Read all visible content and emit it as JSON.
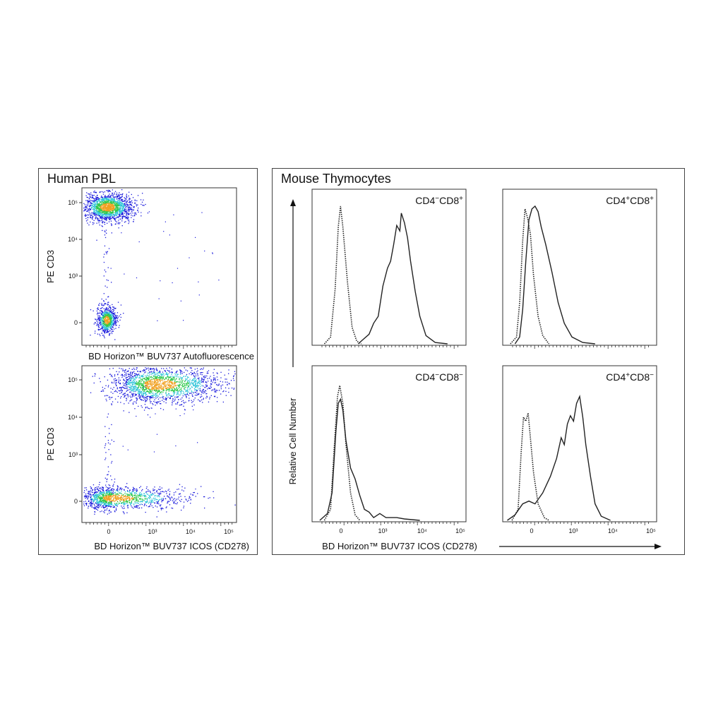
{
  "panels": {
    "left_title": "Human PBL",
    "right_title": "Mouse Thymocytes"
  },
  "chart_data": [
    {
      "type": "scatter",
      "name": "pbl-autofluorescence",
      "xlabel": "BD Horizon™ BUV737 Autofluorescence",
      "ylabel": "PE  CD3",
      "yticks": [
        "10⁵",
        "10⁴",
        "10³",
        "0"
      ],
      "xticks": [],
      "populations": [
        {
          "x_center": 0,
          "y_center": 100000,
          "x_spread": "narrow",
          "density": "high"
        },
        {
          "x_center": 0,
          "y_center": 0,
          "x_spread": "narrow",
          "density": "medium"
        }
      ],
      "grid": false
    },
    {
      "type": "scatter",
      "name": "pbl-icos",
      "xlabel": "BD Horizon™ BUV737 ICOS (CD278)",
      "ylabel": "PE  CD3",
      "yticks": [
        "10⁵",
        "10⁴",
        "10³",
        "0"
      ],
      "xticks": [
        "0",
        "10³",
        "10⁴",
        "10⁵"
      ],
      "populations": [
        {
          "x_center": 1500,
          "y_center": 100000,
          "x_spread": "wide",
          "density": "high"
        },
        {
          "x_center": 0,
          "y_center": 0,
          "x_spread": "wide",
          "density": "medium"
        }
      ],
      "grid": false
    },
    {
      "type": "line",
      "name": "hist-cd4neg-cd8pos",
      "label_parts": [
        "CD4",
        "−",
        "CD8",
        "+"
      ],
      "series": [
        {
          "style": "dotted",
          "peak_x": -200
        },
        {
          "style": "solid",
          "peak_x": 1500
        }
      ],
      "xticks": []
    },
    {
      "type": "line",
      "name": "hist-cd4pos-cd8pos",
      "label_parts": [
        "CD4",
        "+",
        "CD8",
        "+"
      ],
      "series": [
        {
          "style": "dotted",
          "peak_x": -100
        },
        {
          "style": "solid",
          "peak_x": 50
        }
      ],
      "xticks": []
    },
    {
      "type": "line",
      "name": "hist-cd4neg-cd8neg",
      "label_parts": [
        "CD4",
        "−",
        "CD8",
        "−"
      ],
      "series": [
        {
          "style": "dotted",
          "peak_x": -100
        },
        {
          "style": "solid",
          "peak_x": 0
        }
      ],
      "xticks": [
        "0",
        "10³",
        "10⁴",
        "10⁵"
      ]
    },
    {
      "type": "line",
      "name": "hist-cd4pos-cd8neg",
      "label_parts": [
        "CD4",
        "+",
        "CD8",
        "−"
      ],
      "series": [
        {
          "style": "dotted",
          "peak_x": -100
        },
        {
          "style": "solid",
          "peak_x": 1200
        }
      ],
      "xticks": [
        "0",
        "10³",
        "10⁴",
        "10⁵"
      ]
    }
  ],
  "histogram_axes": {
    "ylabel": "Relative Cell Number",
    "xlabel": "BD Horizon™ BUV737 ICOS (CD278)"
  },
  "colors": {
    "density_low": "#1a1adc",
    "density_mid": "#2fc4d8",
    "density_high": "#2ec84a",
    "density_peak": "#f0a020",
    "line": "#222222"
  }
}
